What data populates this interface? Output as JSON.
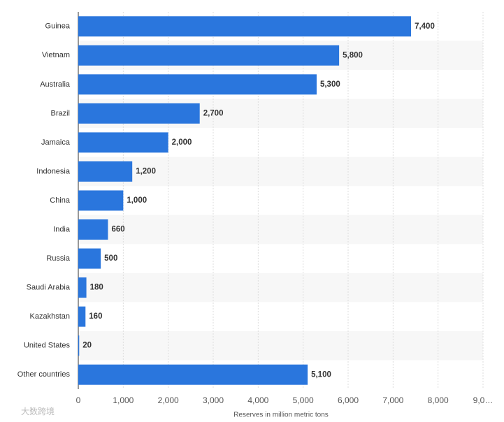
{
  "chart_data": {
    "type": "bar",
    "orientation": "horizontal",
    "x_label": "Reserves in million metric tons",
    "categories": [
      "Guinea",
      "Vietnam",
      "Australia",
      "Brazil",
      "Jamaica",
      "Indonesia",
      "China",
      "India",
      "Russia",
      "Saudi Arabia",
      "Kazakhstan",
      "United States",
      "Other countries"
    ],
    "values": [
      7400,
      5800,
      5300,
      2700,
      2000,
      1200,
      1000,
      660,
      500,
      180,
      160,
      20,
      5100
    ],
    "value_labels": [
      "7,400",
      "5,800",
      "5,300",
      "2,700",
      "2,000",
      "1,200",
      "1,000",
      "660",
      "500",
      "180",
      "160",
      "20",
      "5,100"
    ],
    "color": "#2a76dd",
    "xlim": [
      0,
      9000
    ],
    "xticks": [
      0,
      {
        "value": 1000,
        "label": "1,000"
      },
      {
        "value": 2000,
        "label": "2,000"
      },
      {
        "value": 3000,
        "label": "3,000"
      },
      {
        "value": 4000,
        "label": "4,000"
      },
      {
        "value": 5000,
        "label": "5,000"
      },
      {
        "value": 6000,
        "label": "6,000"
      },
      {
        "value": 7000,
        "label": "7,000"
      },
      {
        "value": 8000,
        "label": "8,000"
      },
      {
        "value": 9000,
        "label": "9,0…"
      }
    ],
    "grid": true,
    "watermark": "大数跨境"
  }
}
